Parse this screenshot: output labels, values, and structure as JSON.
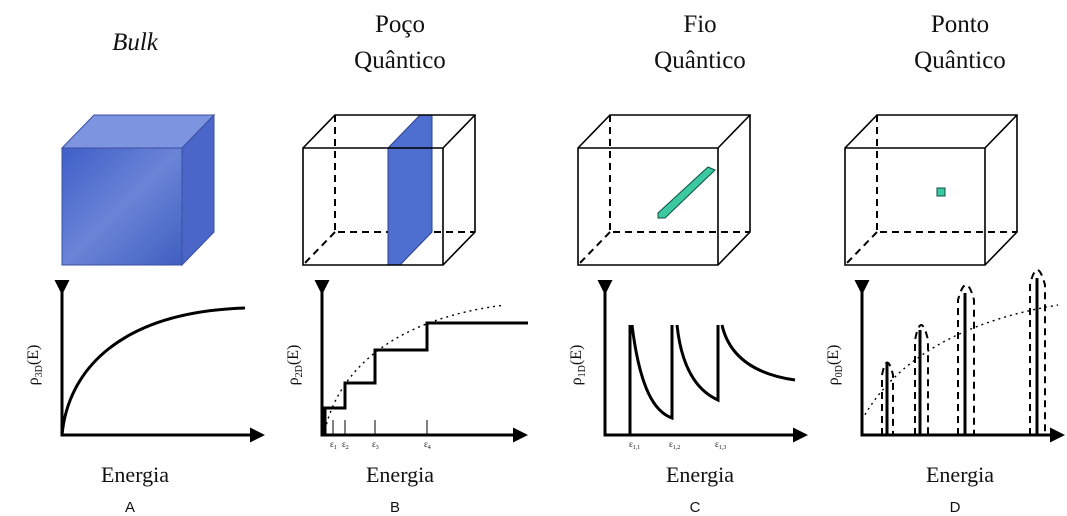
{
  "panels": [
    {
      "title": [
        "Bulk"
      ],
      "y_label": {
        "symbol": "ρ",
        "subscript": "3D",
        "rest": "(E)"
      },
      "x_label": "Energia",
      "letter": "A"
    },
    {
      "title": [
        "Poço",
        "Quântico"
      ],
      "y_label": {
        "symbol": "ρ",
        "subscript": "2D",
        "rest": "(E)"
      },
      "x_label": "Energia",
      "letter": "B",
      "ticks": [
        {
          "symbol": "ε",
          "subscript": "1"
        },
        {
          "symbol": "ε",
          "subscript": "2"
        },
        {
          "symbol": "ε",
          "subscript": "3"
        },
        {
          "symbol": "ε",
          "subscript": "4"
        }
      ]
    },
    {
      "title": [
        "Fio",
        "Quântico"
      ],
      "y_label": {
        "symbol": "ρ",
        "subscript": "1D",
        "rest": "(E)"
      },
      "x_label": "Energia",
      "letter": "C",
      "ticks": [
        {
          "symbol": "ε",
          "subscript": "1,1"
        },
        {
          "symbol": "ε",
          "subscript": "1,2"
        },
        {
          "symbol": "ε",
          "subscript": "1,3"
        }
      ]
    },
    {
      "title": [
        "Ponto",
        "Quântico"
      ],
      "y_label": {
        "symbol": "ρ",
        "subscript": "0D",
        "rest": "(E)"
      },
      "x_label": "Energia",
      "letter": "D"
    }
  ]
}
